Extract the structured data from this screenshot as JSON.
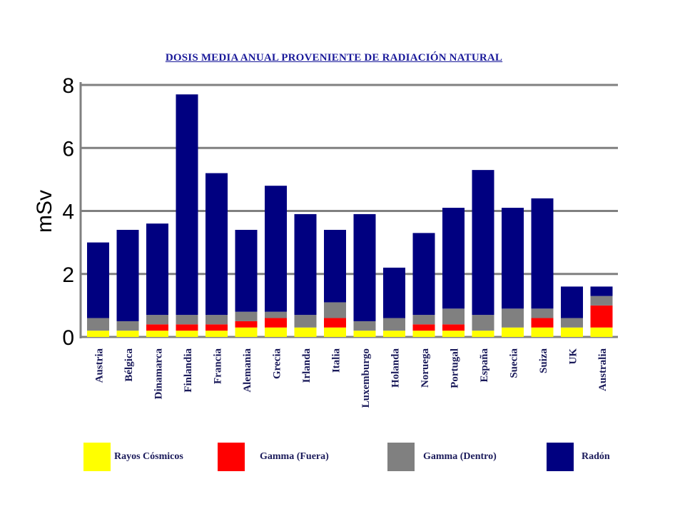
{
  "chart_data": {
    "type": "bar",
    "stacked": true,
    "title": "DOSIS MEDIA ANUAL PROVENIENTE DE RADIACIÓN NATURAL",
    "xlabel": "",
    "ylabel": "mSv",
    "ylim": [
      0,
      8
    ],
    "yticks": [
      "0",
      "2",
      "4",
      "6",
      "8"
    ],
    "grid": true,
    "legend_position": "bottom",
    "categories": [
      "Austria",
      "Bélgica",
      "Dinamarca",
      "Finlandia",
      "Francia",
      "Alemania",
      "Grecia",
      "Irlanda",
      "Italia",
      "Luxemburgo",
      "Holanda",
      "Noruega",
      "Portugal",
      "España",
      "Suecia",
      "Suiza",
      "UK",
      "Australia"
    ],
    "series": [
      {
        "name": "Rayos Cósmicos",
        "color": "#ffff00",
        "values": [
          0.2,
          0.2,
          0.2,
          0.2,
          0.2,
          0.3,
          0.3,
          0.3,
          0.3,
          0.2,
          0.2,
          0.2,
          0.2,
          0.2,
          0.3,
          0.3,
          0.3,
          0.3
        ]
      },
      {
        "name": "Gamma (Fuera)",
        "color": "#ff0000",
        "values": [
          0.0,
          0.0,
          0.2,
          0.2,
          0.2,
          0.2,
          0.3,
          0.0,
          0.3,
          0.0,
          0.0,
          0.2,
          0.2,
          0.0,
          0.0,
          0.3,
          0.0,
          0.7
        ]
      },
      {
        "name": "Gamma (Dentro)",
        "color": "#808080",
        "values": [
          0.4,
          0.3,
          0.3,
          0.3,
          0.3,
          0.3,
          0.2,
          0.4,
          0.5,
          0.3,
          0.4,
          0.3,
          0.5,
          0.5,
          0.6,
          0.3,
          0.3,
          0.3
        ]
      },
      {
        "name": "Radón",
        "color": "#000080",
        "values": [
          2.4,
          2.9,
          2.9,
          7.0,
          4.5,
          2.6,
          4.0,
          3.2,
          2.3,
          3.4,
          1.6,
          2.6,
          3.2,
          4.6,
          3.2,
          3.5,
          1.0,
          0.3
        ]
      }
    ]
  }
}
